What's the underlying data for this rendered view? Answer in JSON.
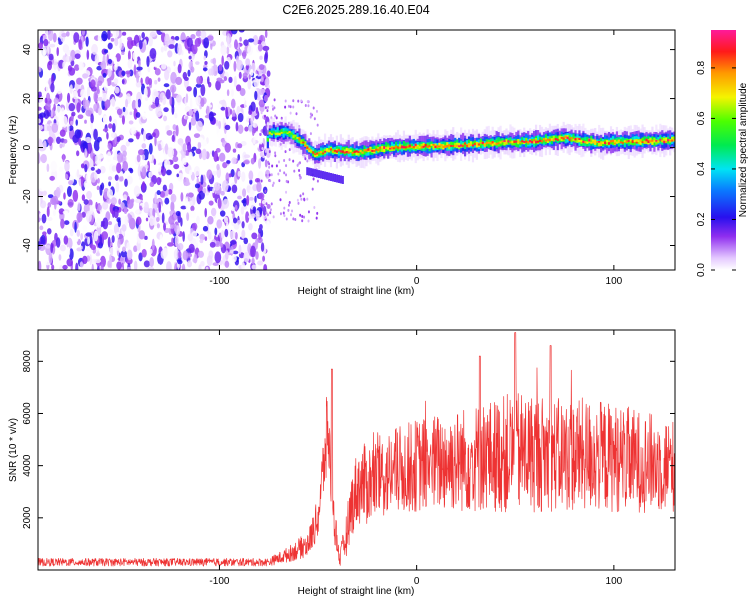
{
  "figure_title": "C2E6.2025.289.16.40.E04",
  "chart_data": [
    {
      "type": "heatmap",
      "title": "C2E6.2025.289.16.40.E04",
      "xlabel": "Height of straight line (km)",
      "ylabel": "Frequency (Hz)",
      "xlim": [
        -192,
        131
      ],
      "ylim": [
        -50,
        48
      ],
      "x_ticks": [
        -100,
        0,
        100
      ],
      "x_tick_labels": [
        "-100",
        "0",
        "100"
      ],
      "y_ticks": [
        -40,
        -20,
        0,
        20,
        40
      ],
      "y_tick_labels": [
        "-40",
        "-20",
        "0",
        "20",
        "40"
      ],
      "colorbar": {
        "label": "Normalized spectral amplitude",
        "range": [
          0,
          0.95
        ],
        "ticks": [
          0.0,
          0.2,
          0.4,
          0.6,
          0.8
        ],
        "tick_labels": [
          "0.0",
          "0.2",
          "0.4",
          "0.6",
          "0.8"
        ],
        "colormap": "rainbow (white-purple-blue-cyan-green-yellow-orange-red-magenta)"
      },
      "features": {
        "noise_region_x": [
          -192,
          -75
        ],
        "signal_ridge": [
          {
            "x": -75,
            "y": 6
          },
          {
            "x": -65,
            "y": 6
          },
          {
            "x": -58,
            "y": 2
          },
          {
            "x": -52,
            "y": -3
          },
          {
            "x": -45,
            "y": -1
          },
          {
            "x": -30,
            "y": -2
          },
          {
            "x": -15,
            "y": 0
          },
          {
            "x": 0,
            "y": 0.5
          },
          {
            "x": 20,
            "y": 1
          },
          {
            "x": 40,
            "y": 2
          },
          {
            "x": 60,
            "y": 2.5
          },
          {
            "x": 75,
            "y": 4
          },
          {
            "x": 90,
            "y": 2
          },
          {
            "x": 110,
            "y": 2.5
          },
          {
            "x": 131,
            "y": 3
          }
        ],
        "peak_amplitude": 0.9
      }
    },
    {
      "type": "line",
      "title": "",
      "xlabel": "Height of straight line (km)",
      "ylabel": "SNR (10 * v/v)",
      "xlim": [
        -192,
        131
      ],
      "ylim": [
        0,
        9200
      ],
      "x_ticks": [
        -100,
        0,
        100
      ],
      "x_tick_labels": [
        "-100",
        "0",
        "100"
      ],
      "y_ticks": [
        2000,
        4000,
        6000,
        8000
      ],
      "y_tick_labels": [
        "2000",
        "4000",
        "6000",
        "8000"
      ],
      "series": [
        {
          "name": "SNR",
          "color": "#ee3333",
          "envelope": {
            "x": [
              -192,
              -75,
              -65,
              -55,
              -50,
              -45,
              -42,
              -39,
              -36,
              -33,
              -30,
              -25,
              -20,
              -10,
              0,
              10,
              20,
              30,
              40,
              50,
              60,
              70,
              80,
              90,
              100,
              110,
              120,
              131
            ],
            "base": [
              300,
              300,
              600,
              1000,
              2000,
              5500,
              2000,
              400,
              1200,
              2500,
              3200,
              3300,
              3500,
              3800,
              4000,
              4100,
              4200,
              4300,
              4400,
              4500,
              4500,
              4400,
              4400,
              4400,
              4300,
              4200,
              4100,
              4000
            ],
            "amplitude": [
              150,
              150,
              300,
              500,
              800,
              1800,
              900,
              300,
              800,
              1200,
              1500,
              1600,
              1600,
              1700,
              1800,
              1900,
              2000,
              2100,
              2200,
              2400,
              2300,
              2200,
              2200,
              2200,
              2100,
              2000,
              1900,
              1800
            ],
            "peaks": [
              {
                "x": -43,
                "y": 7700
              },
              {
                "x": 32,
                "y": 8200
              },
              {
                "x": 50,
                "y": 9100
              },
              {
                "x": 68,
                "y": 8600
              }
            ]
          }
        }
      ]
    }
  ]
}
